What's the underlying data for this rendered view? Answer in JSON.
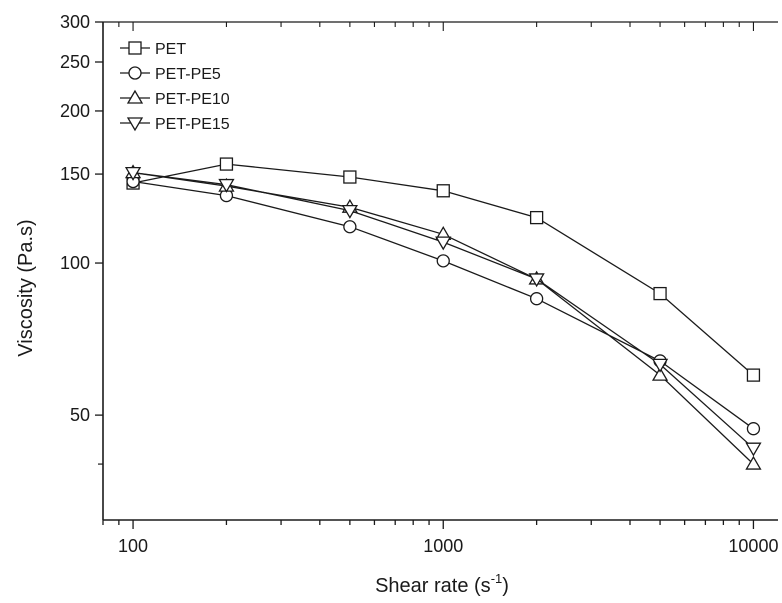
{
  "chart_data": {
    "type": "line",
    "xlabel": "Shear rate (s",
    "xlabel_sup": "-1",
    "xlabel_end": ")",
    "ylabel": "Viscosity (Pa.s)",
    "x_scale": "log",
    "y_scale": "log",
    "xlim": [
      80,
      12000
    ],
    "ylim": [
      31,
      300
    ],
    "x_ticks": [
      100,
      1000,
      10000
    ],
    "x_tick_labels": [
      "100",
      "1000",
      "10000"
    ],
    "y_ticks": [
      50,
      100,
      150,
      200,
      250,
      300
    ],
    "y_tick_labels": [
      "50",
      "100",
      "150",
      "200",
      "250",
      "300"
    ],
    "legend_position": "top-left",
    "grid": false,
    "series": [
      {
        "name": "PET",
        "marker": "square",
        "x": [
          100,
          200,
          500,
          1000,
          2000,
          5000,
          10000
        ],
        "y": [
          144,
          157,
          148,
          139,
          123,
          87,
          60
        ]
      },
      {
        "name": "PET-PE5",
        "marker": "circle",
        "x": [
          100,
          200,
          500,
          1000,
          2000,
          5000,
          10000
        ],
        "y": [
          145,
          136,
          118,
          101,
          85,
          64,
          47
        ]
      },
      {
        "name": "PET-PE10",
        "marker": "triangle-up",
        "x": [
          100,
          200,
          500,
          1000,
          2000,
          5000,
          10000
        ],
        "y": [
          151,
          142,
          129,
          114,
          93,
          60,
          40
        ]
      },
      {
        "name": "PET-PE15",
        "marker": "triangle-down",
        "x": [
          100,
          200,
          500,
          1000,
          2000,
          5000,
          10000
        ],
        "y": [
          151,
          143,
          127,
          110,
          93,
          63,
          43
        ]
      }
    ]
  }
}
